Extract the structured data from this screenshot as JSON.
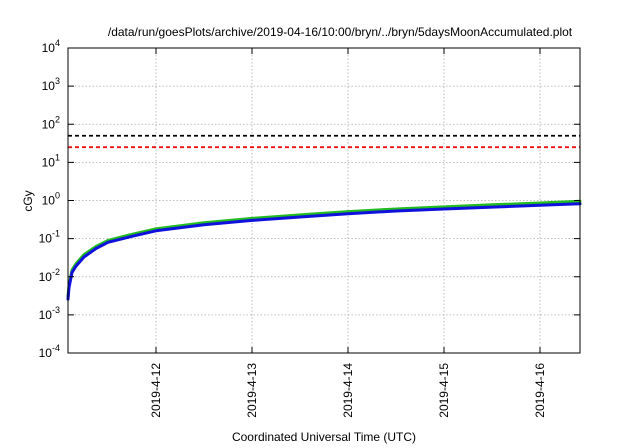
{
  "chart_data": {
    "type": "line",
    "title": "/data/run/goesPlots/archive/2019-04-16/10:00/bryn/../bryn/5daysMoonAccumulated.plot",
    "xlabel": "Coordinated Universal Time (UTC)",
    "ylabel": "cGy",
    "x_scale": "time",
    "y_scale": "log",
    "xlim": [
      "2019-04-11T02:00",
      "2019-04-16T10:00"
    ],
    "ylim": [
      0.0001,
      10000
    ],
    "x_ticks": [
      "2019-4-12",
      "2019-4-13",
      "2019-4-14",
      "2019-4-15",
      "2019-4-16"
    ],
    "x_tick_dates": [
      "2019-04-12T00:00",
      "2019-04-13T00:00",
      "2019-04-14T00:00",
      "2019-04-15T00:00",
      "2019-04-16T00:00"
    ],
    "y_ticks": [
      {
        "base": "10",
        "exp": "-4",
        "value": 0.0001
      },
      {
        "base": "10",
        "exp": "-3",
        "value": 0.001
      },
      {
        "base": "10",
        "exp": "-2",
        "value": 0.01
      },
      {
        "base": "10",
        "exp": "-1",
        "value": 0.1
      },
      {
        "base": "10",
        "exp": "0",
        "value": 1
      },
      {
        "base": "10",
        "exp": "1",
        "value": 10
      },
      {
        "base": "10",
        "exp": "2",
        "value": 100
      },
      {
        "base": "10",
        "exp": "3",
        "value": 1000
      },
      {
        "base": "10",
        "exp": "4",
        "value": 10000
      }
    ],
    "grid": true,
    "thresholds": [
      {
        "value": 50,
        "color": "#000000",
        "style": "dashed"
      },
      {
        "value": 25,
        "color": "#ee1111",
        "style": "dashed"
      }
    ],
    "series": [
      {
        "color": "#22bb22",
        "x": [
          "2019-04-11T02:00",
          "2019-04-11T02:15",
          "2019-04-11T03:00",
          "2019-04-11T04:00",
          "2019-04-11T06:00",
          "2019-04-11T09:00",
          "2019-04-11T12:00",
          "2019-04-11T18:00",
          "2019-04-12T00:00",
          "2019-04-12T12:00",
          "2019-04-13T00:00",
          "2019-04-13T12:00",
          "2019-04-14T00:00",
          "2019-04-14T12:00",
          "2019-04-15T00:00",
          "2019-04-15T12:00",
          "2019-04-16T00:00",
          "2019-04-16T10:00"
        ],
        "values": [
          0.003,
          0.006,
          0.015,
          0.022,
          0.038,
          0.062,
          0.09,
          0.13,
          0.18,
          0.26,
          0.34,
          0.42,
          0.51,
          0.6,
          0.68,
          0.77,
          0.86,
          0.95
        ]
      },
      {
        "color": "#1111dd",
        "x": [
          "2019-04-11T02:00",
          "2019-04-11T02:15",
          "2019-04-11T03:00",
          "2019-04-11T04:00",
          "2019-04-11T06:00",
          "2019-04-11T09:00",
          "2019-04-11T12:00",
          "2019-04-11T18:00",
          "2019-04-12T00:00",
          "2019-04-12T12:00",
          "2019-04-13T00:00",
          "2019-04-13T12:00",
          "2019-04-14T00:00",
          "2019-04-14T12:00",
          "2019-04-15T00:00",
          "2019-04-15T12:00",
          "2019-04-16T00:00",
          "2019-04-16T10:00"
        ],
        "values": [
          0.0026,
          0.0052,
          0.013,
          0.019,
          0.033,
          0.055,
          0.08,
          0.115,
          0.16,
          0.23,
          0.3,
          0.37,
          0.45,
          0.53,
          0.6,
          0.67,
          0.75,
          0.82
        ]
      }
    ]
  }
}
